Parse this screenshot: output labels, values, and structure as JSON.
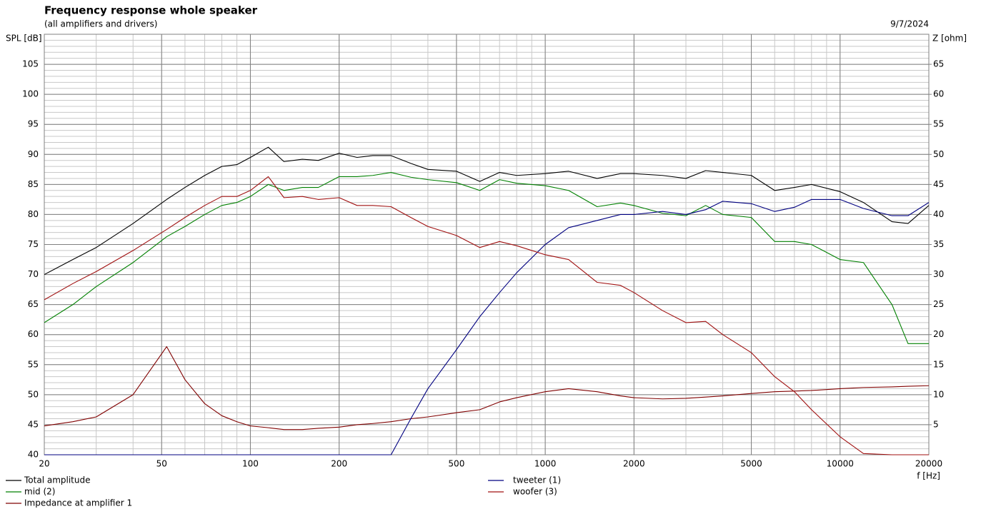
{
  "chart_data": {
    "type": "line",
    "title": "Frequency response whole speaker",
    "subtitle": "(all amplifiers and drivers)",
    "date": "9/7/2024",
    "y_label": "SPL [dB]",
    "y2_label": "Z [ohm]",
    "x_label": "f [Hz]",
    "x_log": true,
    "grid": true,
    "xlim": [
      20,
      20000
    ],
    "xticks": [
      20,
      50,
      100,
      200,
      500,
      1000,
      2000,
      5000,
      10000,
      20000
    ],
    "ylim": [
      40,
      110
    ],
    "yticks": [
      40,
      45,
      50,
      55,
      60,
      65,
      70,
      75,
      80,
      85,
      90,
      95,
      100,
      105
    ],
    "y2lim": [
      0,
      70
    ],
    "y2ticks": [
      5,
      10,
      15,
      20,
      25,
      30,
      35,
      40,
      45,
      50,
      55,
      60,
      65
    ],
    "x": [
      20,
      25,
      30,
      40,
      52,
      60,
      70,
      80,
      90,
      100,
      115,
      130,
      150,
      170,
      200,
      230,
      260,
      300,
      350,
      400,
      500,
      600,
      700,
      800,
      1000,
      1200,
      1500,
      1800,
      2000,
      2500,
      3000,
      3500,
      4000,
      5000,
      6000,
      7000,
      8000,
      10000,
      12000,
      15000,
      17000,
      20000
    ],
    "series": [
      {
        "name": "Total amplitude",
        "color": "#000000",
        "values": [
          70,
          72.5,
          74.5,
          78.5,
          82.5,
          84.5,
          86.5,
          88,
          88.3,
          89.5,
          91.2,
          88.8,
          89.2,
          89,
          90.2,
          89.5,
          89.8,
          89.8,
          88.5,
          87.5,
          87.2,
          85.5,
          87,
          86.5,
          86.8,
          87.2,
          86,
          86.8,
          86.8,
          86.5,
          86,
          87.3,
          87,
          86.5,
          84,
          84.5,
          85,
          83.8,
          82,
          78.8,
          78.5,
          81.5
        ]
      },
      {
        "name": "mid (2)",
        "color": "#008000",
        "values": [
          62,
          65,
          68,
          72,
          76.3,
          78,
          80,
          81.5,
          82,
          83,
          85,
          84,
          84.5,
          84.5,
          86.3,
          86.3,
          86.5,
          87,
          86.2,
          85.8,
          85.3,
          84,
          85.8,
          85.2,
          84.8,
          84,
          81.3,
          81.9,
          81.5,
          80.2,
          79.8,
          81.5,
          80,
          79.5,
          75.5,
          75.5,
          75,
          72.5,
          72,
          65,
          58.5,
          58.5
        ]
      },
      {
        "name": "Impedance at amplifier 1",
        "color": "#800000",
        "axis": "y2",
        "values": [
          4.8,
          5.5,
          6.3,
          10,
          18,
          12.5,
          8.5,
          6.5,
          5.5,
          4.8,
          4.5,
          4.2,
          4.2,
          4.4,
          4.6,
          5,
          5.2,
          5.5,
          6,
          6.3,
          7,
          7.5,
          8.8,
          9.5,
          10.5,
          11,
          10.5,
          9.8,
          9.5,
          9.3,
          9.4,
          9.6,
          9.8,
          10.2,
          10.5,
          10.6,
          10.7,
          11,
          11.2,
          11.3,
          11.4,
          11.5
        ]
      },
      {
        "name": "tweeter (1)",
        "color": "#000080",
        "values": [
          40,
          40,
          40,
          40,
          40,
          40,
          40,
          40,
          40,
          40,
          40,
          40,
          40,
          40,
          40,
          40,
          40,
          40,
          46,
          51,
          57.5,
          63,
          67,
          70.3,
          75,
          77.8,
          79,
          80,
          80,
          80.5,
          80,
          80.8,
          82.2,
          81.8,
          80.5,
          81.2,
          82.5,
          82.5,
          81,
          79.8,
          79.8,
          82
        ]
      },
      {
        "name": "woofer (3)",
        "color": "#a01010",
        "values": [
          65.8,
          68.5,
          70.5,
          74,
          77.5,
          79.5,
          81.5,
          83,
          83,
          84,
          86.3,
          82.8,
          83,
          82.5,
          82.8,
          81.5,
          81.5,
          81.3,
          79.5,
          78,
          76.5,
          74.5,
          75.5,
          74.8,
          73.3,
          72.5,
          68.7,
          68.2,
          67,
          64,
          62,
          62.2,
          60,
          57,
          53,
          50.5,
          47.5,
          43,
          40.2,
          40,
          40,
          40
        ]
      }
    ]
  }
}
